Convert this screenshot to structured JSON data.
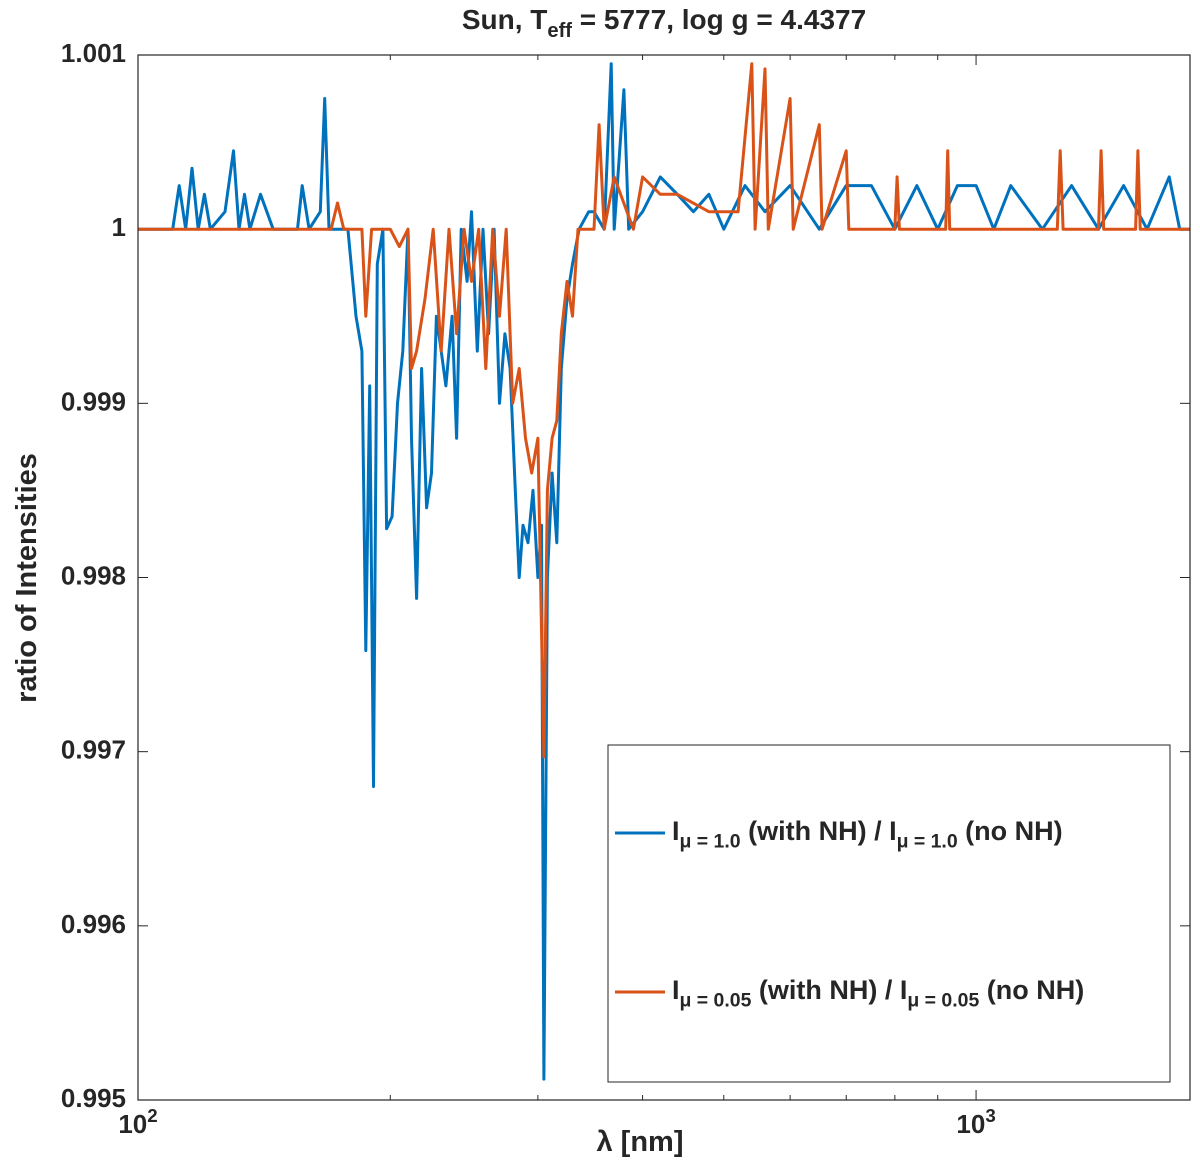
{
  "chart_data": {
    "type": "line",
    "title": "Sun, T_{eff} = 5777, log g = 4.4377",
    "xlabel": "λ [nm]",
    "ylabel": "ratio of Intensities",
    "xscale": "log",
    "xlim": [
      100,
      1800
    ],
    "ylim": [
      0.995,
      1.001
    ],
    "xticks": [
      {
        "value": 100,
        "label": "10^{2}"
      },
      {
        "value": 1000,
        "label": "10^{3}"
      }
    ],
    "xminorticks": [
      200,
      300,
      400,
      500,
      600,
      700,
      800,
      900
    ],
    "yticks": [
      0.995,
      0.996,
      0.997,
      0.998,
      0.999,
      1,
      1.001
    ],
    "legend": "lower right",
    "series": [
      {
        "name": "I_{μ = 1.0} (with NH) / I_{μ = 1.0} (no NH)",
        "color": "#0072bd",
        "x": [
          100,
          110,
          112,
          114,
          116,
          118,
          120,
          122,
          127,
          130,
          132,
          134,
          136,
          140,
          145,
          155,
          157,
          160,
          165,
          167,
          169,
          178,
          182,
          185,
          187,
          189,
          191,
          193,
          196,
          198,
          201,
          204,
          207,
          210,
          212,
          215,
          218,
          221,
          224,
          227,
          230,
          233,
          237,
          240,
          243,
          247,
          250,
          254,
          258,
          262,
          266,
          270,
          274,
          278,
          282,
          285,
          288,
          292,
          296,
          300,
          303,
          305,
          308,
          312,
          316,
          320,
          325,
          330,
          336,
          345,
          350,
          360,
          367,
          370,
          375,
          380,
          385,
          400,
          420,
          440,
          460,
          480,
          500,
          530,
          560,
          600,
          650,
          700,
          750,
          800,
          850,
          900,
          950,
          1000,
          1050,
          1100,
          1200,
          1300,
          1400,
          1500,
          1600,
          1700,
          1750,
          1800
        ],
        "values": [
          1,
          1,
          1.00025,
          1,
          1.00035,
          1,
          1.0002,
          1,
          1.0001,
          1.00045,
          1,
          1.0002,
          1,
          1.0002,
          1,
          1,
          1.00025,
          1,
          1.0001,
          1.00075,
          1,
          1,
          0.9995,
          0.9993,
          0.99758,
          0.9991,
          0.9968,
          0.9998,
          1,
          0.99828,
          0.99835,
          0.999,
          0.9993,
          1,
          0.9988,
          0.99788,
          0.9992,
          0.9984,
          0.9986,
          0.9995,
          0.9993,
          0.9991,
          0.9995,
          0.9988,
          1,
          0.9997,
          1.0001,
          0.9993,
          1,
          0.9994,
          1,
          0.999,
          0.9994,
          0.9992,
          0.9985,
          0.998,
          0.9983,
          0.9982,
          0.9985,
          0.998,
          0.9983,
          0.99512,
          0.998,
          0.9986,
          0.9982,
          0.9992,
          0.9996,
          0.9998,
          1,
          1.0001,
          1.0001,
          1,
          1.00095,
          1,
          1.0004,
          1.0008,
          1,
          1.0001,
          1.0003,
          1.0002,
          1.0001,
          1.0002,
          1,
          1.00025,
          1.0001,
          1.00025,
          1,
          1.00025,
          1.00025,
          1,
          1.00025,
          1,
          1.00025,
          1.00025,
          1,
          1.00025,
          1,
          1.00025,
          1,
          1.00025,
          1,
          1.0003,
          1,
          1
        ]
      },
      {
        "name": "I_{μ = 0.05} (with NH) / I_{μ = 0.05} (no NH)",
        "color": "#d95319",
        "x": [
          100,
          170,
          173,
          176,
          185,
          187,
          190,
          200,
          205,
          210,
          212,
          215,
          220,
          225,
          230,
          235,
          240,
          245,
          250,
          255,
          260,
          265,
          270,
          275,
          280,
          285,
          290,
          295,
          300,
          305,
          308,
          312,
          316,
          320,
          325,
          330,
          335,
          350,
          355,
          360,
          370,
          390,
          400,
          420,
          440,
          480,
          520,
          540,
          545,
          560,
          565,
          600,
          605,
          650,
          655,
          700,
          705,
          800,
          805,
          810,
          920,
          925,
          930,
          1250,
          1260,
          1270,
          1400,
          1410,
          1420,
          1550,
          1560,
          1570,
          1800
        ],
        "values": [
          1,
          1,
          1.00015,
          1,
          1,
          0.9995,
          1,
          1,
          0.9999,
          1,
          0.9992,
          0.9993,
          0.9996,
          1,
          0.9993,
          1,
          0.9994,
          1,
          0.9997,
          1,
          0.9992,
          1,
          0.9995,
          1,
          0.999,
          0.9992,
          0.9988,
          0.9986,
          0.9988,
          0.99697,
          0.9985,
          0.9988,
          0.9989,
          0.9994,
          0.9997,
          0.9995,
          1,
          1,
          1.0006,
          1,
          1.0003,
          1,
          1.0003,
          1.0002,
          1.0002,
          1.0001,
          1.0001,
          1.00095,
          1,
          1.00092,
          1,
          1.00075,
          1,
          1.0006,
          1,
          1.00045,
          1,
          1,
          1.0003,
          1,
          1,
          1.00045,
          1,
          1,
          1.00045,
          1,
          1,
          1.00045,
          1,
          1,
          1.00045,
          1,
          1
        ]
      }
    ]
  }
}
